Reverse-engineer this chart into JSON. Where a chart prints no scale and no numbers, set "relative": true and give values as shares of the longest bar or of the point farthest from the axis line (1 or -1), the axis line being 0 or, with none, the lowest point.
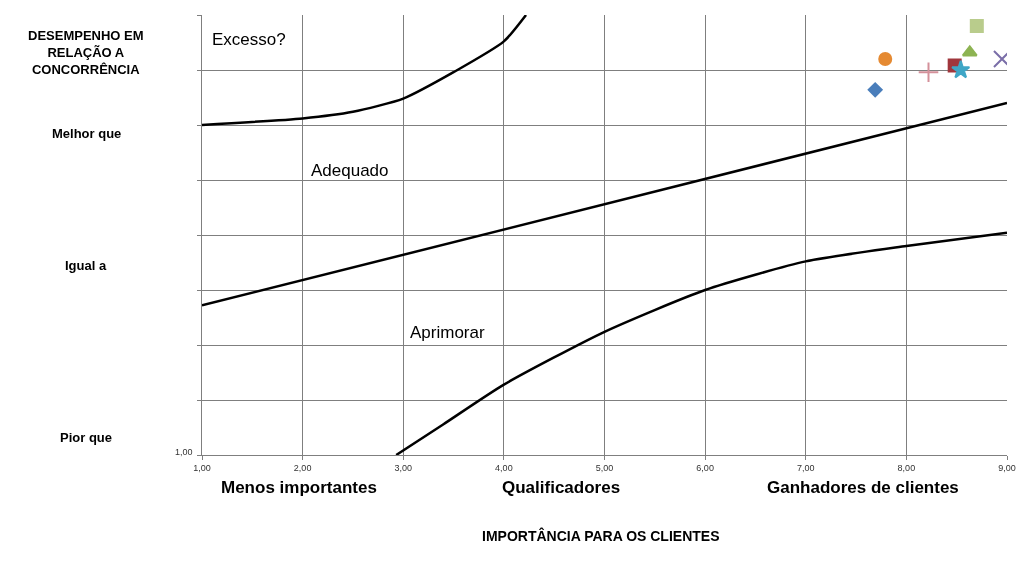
{
  "chart_data": {
    "type": "scatter",
    "ylabel": "DESEMPENHO EM\nRELAÇÃO A\nCONCORRÊNCIA",
    "xlabel": "IMPORTÂNCIA PARA OS CLIENTES",
    "annotations": [
      "Excesso?",
      "Adequado",
      "Aprimorar",
      "Melhor que",
      "Igual a",
      "Pior que",
      "Menos importantes",
      "Qualificadores",
      "Ganhadores de clientes",
      "1,00"
    ],
    "relative": true,
    "xlim": [
      1,
      9
    ],
    "xticks": [
      {
        "value": 1,
        "label": "1,00"
      },
      {
        "value": 2,
        "label": "2,00"
      },
      {
        "value": 3,
        "label": "3,00"
      },
      {
        "value": 4,
        "label": "4,00"
      },
      {
        "value": 5,
        "label": "5,00"
      },
      {
        "value": 6,
        "label": "6,00"
      },
      {
        "value": 7,
        "label": "7,00"
      },
      {
        "value": 8,
        "label": "8,00"
      },
      {
        "value": 9,
        "label": "9,00"
      }
    ],
    "grid": true,
    "series": [
      {
        "type": "line",
        "color": "#000000",
        "marker": "none",
        "x": [
          1,
          2,
          2.5,
          3,
          3.5,
          4,
          4.22
        ],
        "values": [
          0.75,
          0.765,
          0.78,
          0.81,
          0.87,
          0.94,
          1
        ]
      },
      {
        "type": "line",
        "color": "#000000",
        "marker": "none",
        "x": [
          1,
          9
        ],
        "values": [
          0.34,
          0.8
        ]
      },
      {
        "type": "line",
        "color": "#000000",
        "marker": "none",
        "x": [
          2.93,
          3.4,
          4,
          5,
          6,
          7,
          8,
          9
        ],
        "values": [
          0,
          0.07,
          0.16,
          0.28,
          0.375,
          0.44,
          0.475,
          0.505
        ]
      },
      {
        "color": "#4a7ebb",
        "marker": "diamond",
        "x": [
          7.69
        ],
        "values": [
          0.83
        ]
      },
      {
        "color": "#e58a32",
        "marker": "circle",
        "x": [
          7.79
        ],
        "values": [
          0.9
        ]
      },
      {
        "color": "#d4909a",
        "marker": "cross",
        "x": [
          8.22
        ],
        "values": [
          0.87
        ]
      },
      {
        "color": "#a0363c",
        "marker": "square",
        "x": [
          8.48
        ],
        "values": [
          0.885
        ]
      },
      {
        "color": "#3fa6c6",
        "marker": "star",
        "x": [
          8.54
        ],
        "values": [
          0.875
        ]
      },
      {
        "color": "#8db352",
        "marker": "triangle",
        "x": [
          8.63
        ],
        "values": [
          0.915
        ]
      },
      {
        "color": "#b9cc8c",
        "marker": "square",
        "x": [
          8.7
        ],
        "values": [
          0.975
        ]
      },
      {
        "color": "#7a6ea8",
        "marker": "x",
        "x": [
          8.95
        ],
        "values": [
          0.9
        ]
      }
    ]
  }
}
